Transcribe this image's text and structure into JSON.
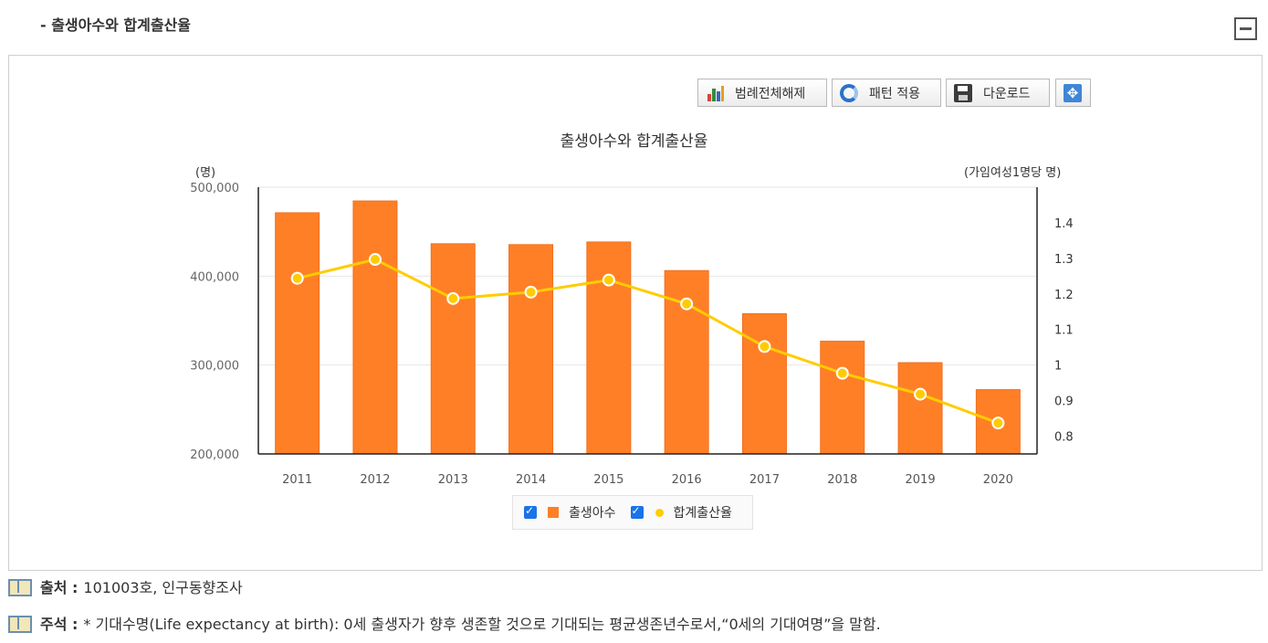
{
  "section": {
    "title": "- 출생아수와 합계출산율"
  },
  "toolbar": {
    "legend_label": "범례전체해제",
    "pattern_label": "패턴 적용",
    "download_label": "다운로드"
  },
  "icons": {
    "collapse": "minus-box-icon",
    "legend": "bar-chart-icon",
    "pattern": "refresh-icon",
    "download": "floppy-disk-icon",
    "expand": "expand-arrows-icon",
    "note": "book-icon"
  },
  "colors": {
    "bar": "#ff7f27",
    "line": "#ffcc00",
    "checkbox": "#1a73e8"
  },
  "chart_data": {
    "type": "bar",
    "title": "출생아수와 합계출산율",
    "categories": [
      "2011",
      "2012",
      "2013",
      "2014",
      "2015",
      "2016",
      "2017",
      "2018",
      "2019",
      "2020"
    ],
    "series": [
      {
        "name": "출생아수",
        "type": "bar",
        "axis": "left",
        "values": [
          471265,
          484550,
          436455,
          435435,
          438420,
          406243,
          357771,
          326822,
          302676,
          272337
        ]
      },
      {
        "name": "합계출산율",
        "type": "line",
        "axis": "right",
        "values": [
          1.244,
          1.297,
          1.187,
          1.205,
          1.239,
          1.172,
          1.052,
          0.977,
          0.918,
          0.837
        ]
      }
    ],
    "y_left": {
      "unit": "(명)",
      "min": 200000,
      "max": 500000,
      "ticks": [
        200000,
        300000,
        400000,
        500000
      ],
      "tick_labels": [
        "200,000",
        "300,000",
        "400,000",
        "500,000"
      ]
    },
    "y_right": {
      "unit": "(가임여성1명당 명)",
      "min": 0.75,
      "max": 1.5,
      "ticks": [
        0.8,
        0.9,
        1,
        1.1,
        1.2,
        1.3,
        1.4
      ],
      "tick_labels": [
        "0.8",
        "0.9",
        "1",
        "1.1",
        "1.2",
        "1.3",
        "1.4"
      ]
    },
    "grid": true,
    "legend_position": "bottom"
  },
  "notes": {
    "source_key": "출처 :",
    "source_value": "101003호, 인구동향조사",
    "comment_key": "주석 :",
    "comment_value": "* 기대수명(Life expectancy at birth): 0세 출생자가 향후 생존할 것으로 기대되는 평균생존년수로서,“0세의 기대여명”을 말함."
  }
}
